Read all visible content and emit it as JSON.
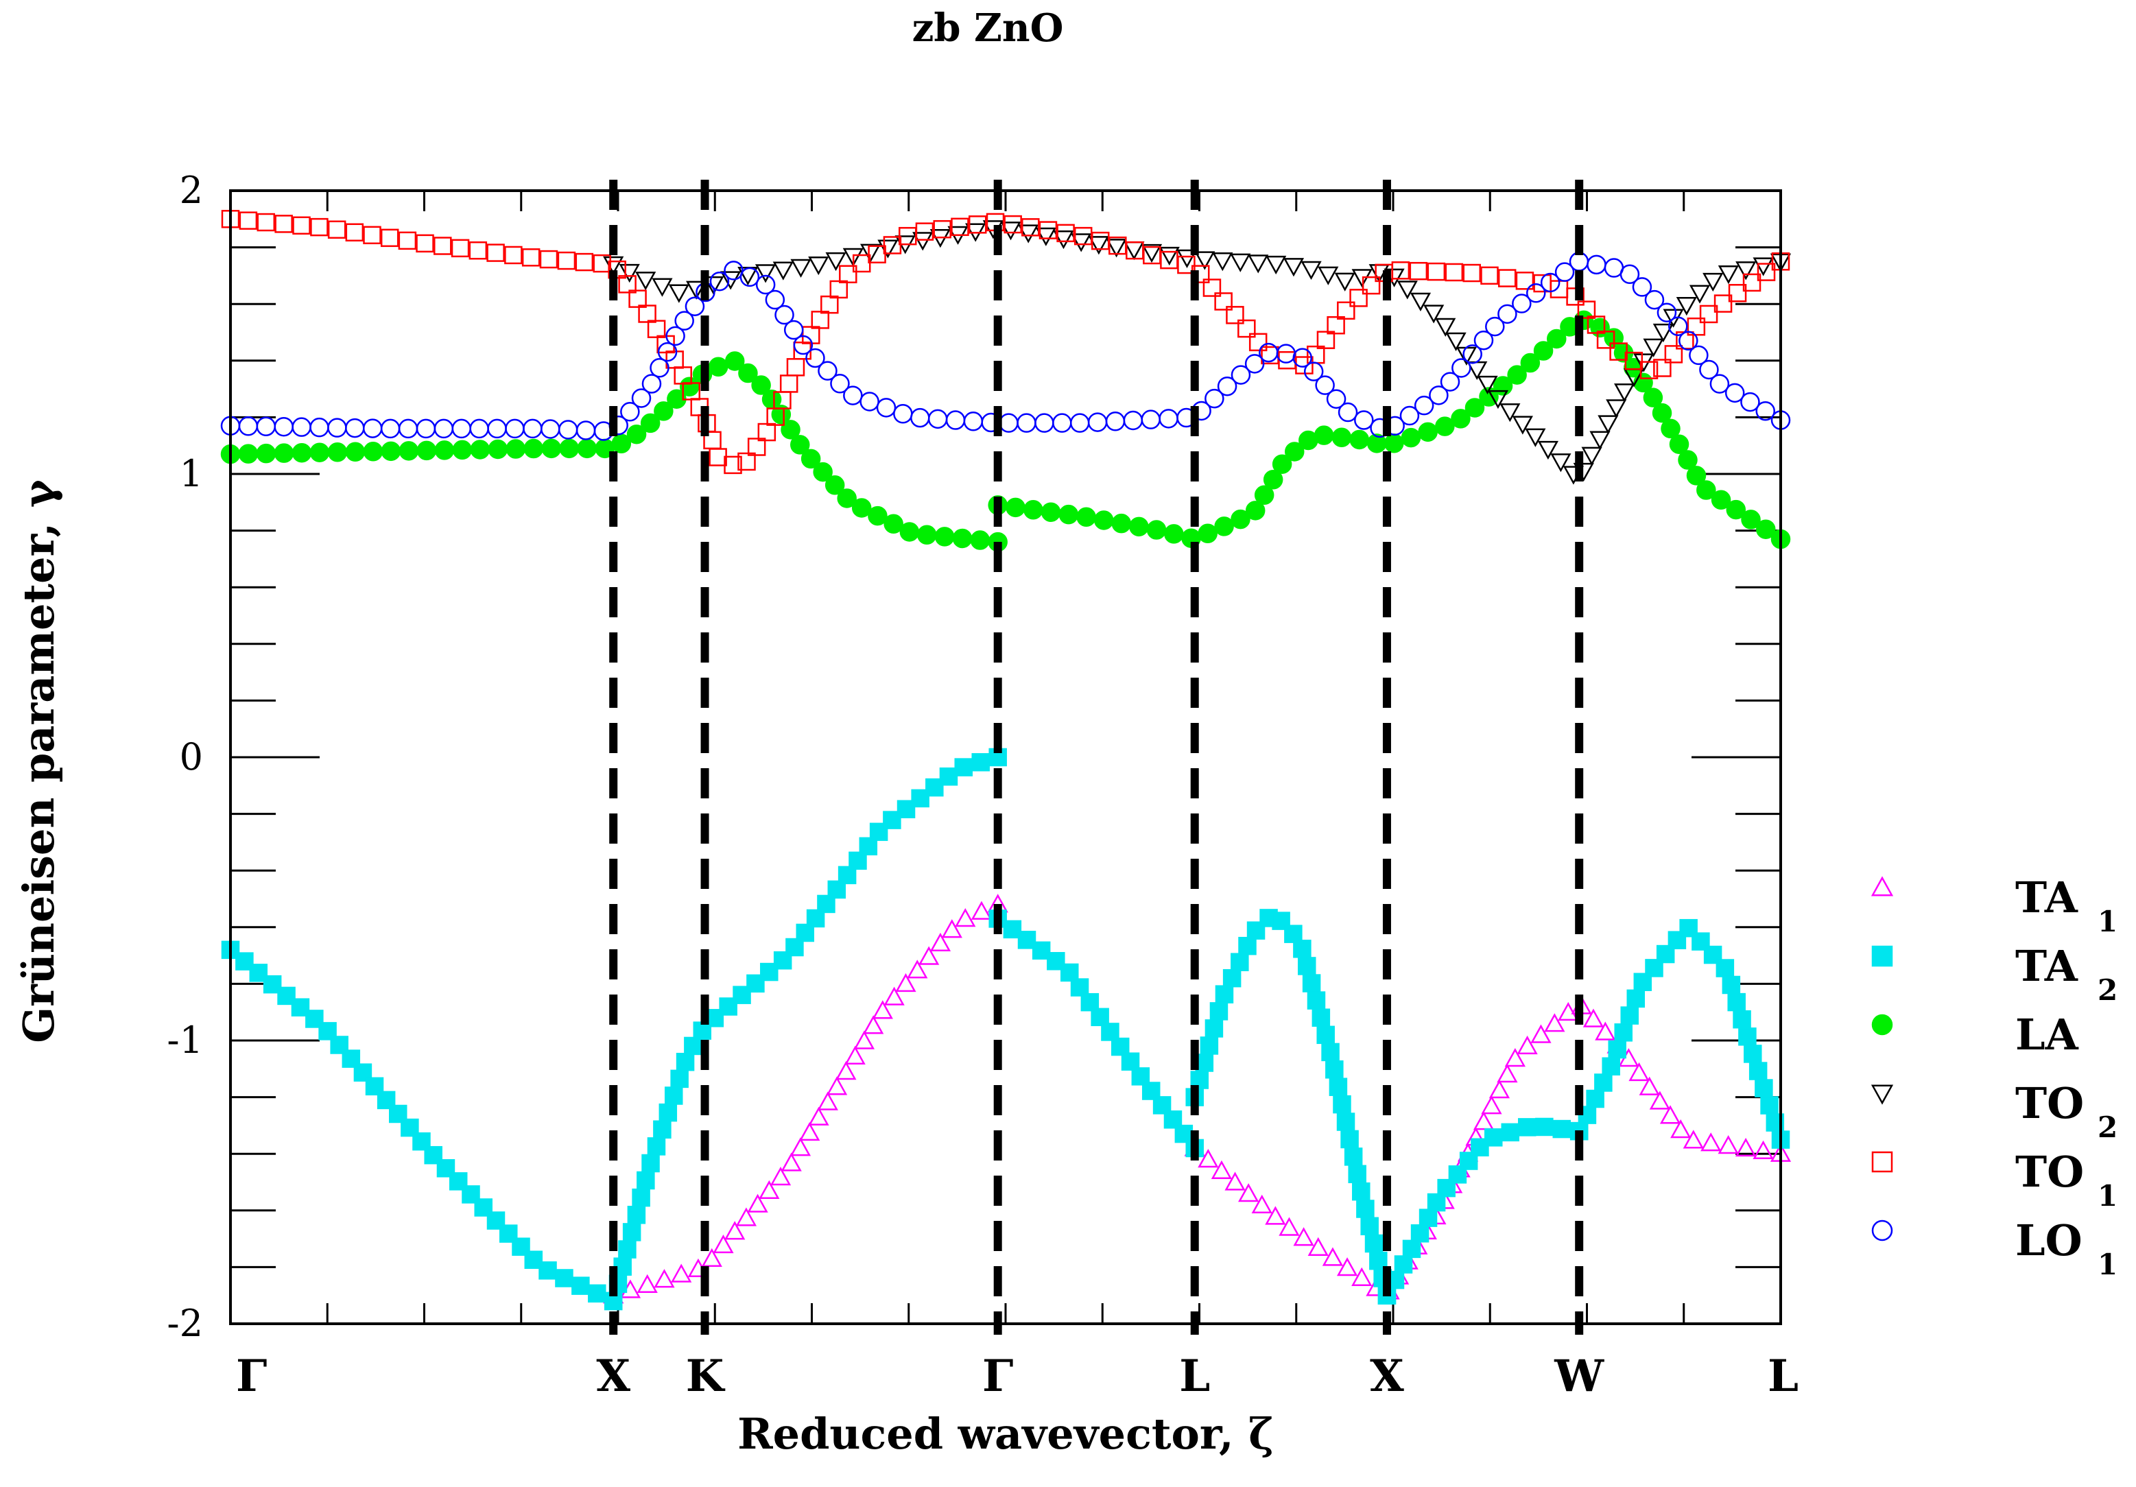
{
  "chart_data": {
    "type": "scatter",
    "title": "zb ZnO",
    "xlabel": "Reduced wavevector, ζ",
    "ylabel": "Grüneisen parameter, γ",
    "xlim": [
      0,
      1
    ],
    "ylim": [
      -2,
      2
    ],
    "yticks": [
      "2",
      "1",
      "0",
      "-1",
      "-2"
    ],
    "ytick_values": [
      2,
      1,
      0,
      -1,
      -2
    ],
    "high_symmetry_points": [
      {
        "label": "Γ",
        "x": 0.0,
        "line": false
      },
      {
        "label": "X",
        "x": 0.247,
        "line": true
      },
      {
        "label": "K",
        "x": 0.306,
        "line": true
      },
      {
        "label": "Γ",
        "x": 0.495,
        "line": true
      },
      {
        "label": "L",
        "x": 0.622,
        "line": true
      },
      {
        "label": "X",
        "x": 0.746,
        "line": true
      },
      {
        "label": "W",
        "x": 0.87,
        "line": true
      },
      {
        "label": "L",
        "x": 1.0,
        "line": false
      }
    ],
    "legend": [
      {
        "name": "TA",
        "sub": "1",
        "marker": "triangle-up",
        "color": "#ff00ff",
        "filled": false
      },
      {
        "name": "TA",
        "sub": "2",
        "marker": "square",
        "color": "#00e5ee",
        "filled": true
      },
      {
        "name": "LA",
        "sub": "",
        "marker": "circle",
        "color": "#00ee00",
        "filled": true
      },
      {
        "name": "TO",
        "sub": "2",
        "marker": "triangle-down",
        "color": "#000000",
        "filled": false
      },
      {
        "name": "TO",
        "sub": "1",
        "marker": "square",
        "color": "#ff0000",
        "filled": false
      },
      {
        "name": "LO",
        "sub": "1",
        "marker": "circle",
        "color": "#0000ff",
        "filled": false
      }
    ],
    "legend_position": "right",
    "series": [
      {
        "name": "TA1",
        "segments": [
          [
            [
              0.247,
              -1.9
            ],
            [
              0.306,
              -1.8
            ],
            [
              0.36,
              -1.45
            ],
            [
              0.42,
              -0.9
            ],
            [
              0.47,
              -0.58
            ],
            [
              0.495,
              -0.52
            ]
          ],
          [
            [
              0.622,
              -1.38
            ],
            [
              0.68,
              -1.65
            ],
            [
              0.746,
              -1.9
            ],
            [
              0.78,
              -1.6
            ],
            [
              0.83,
              -1.05
            ],
            [
              0.87,
              -0.87
            ],
            [
              0.9,
              -1.05
            ],
            [
              0.94,
              -1.35
            ],
            [
              1.0,
              -1.4
            ]
          ]
        ]
      },
      {
        "name": "TA2",
        "segments": [
          [
            [
              0.0,
              -0.68
            ],
            [
              0.06,
              -0.95
            ],
            [
              0.13,
              -1.4
            ],
            [
              0.2,
              -1.8
            ],
            [
              0.247,
              -1.92
            ]
          ],
          [
            [
              0.247,
              -1.92
            ],
            [
              0.27,
              -1.45
            ],
            [
              0.295,
              -1.05
            ],
            [
              0.306,
              -0.95
            ],
            [
              0.36,
              -0.7
            ],
            [
              0.42,
              -0.25
            ],
            [
              0.47,
              -0.04
            ],
            [
              0.495,
              0.0
            ]
          ],
          [
            [
              0.495,
              -0.57
            ],
            [
              0.54,
              -0.75
            ],
            [
              0.59,
              -1.15
            ],
            [
              0.622,
              -1.38
            ]
          ],
          [
            [
              0.622,
              -1.2
            ],
            [
              0.64,
              -0.85
            ],
            [
              0.66,
              -0.62
            ],
            [
              0.673,
              -0.55
            ],
            [
              0.69,
              -0.65
            ],
            [
              0.71,
              -1.05
            ],
            [
              0.73,
              -1.55
            ],
            [
              0.746,
              -1.9
            ]
          ],
          [
            [
              0.746,
              -1.9
            ],
            [
              0.78,
              -1.55
            ],
            [
              0.81,
              -1.35
            ],
            [
              0.84,
              -1.3
            ],
            [
              0.87,
              -1.32
            ]
          ],
          [
            [
              0.87,
              -1.32
            ],
            [
              0.89,
              -1.1
            ],
            [
              0.91,
              -0.8
            ],
            [
              0.94,
              -0.6
            ],
            [
              0.965,
              -0.75
            ],
            [
              0.985,
              -1.1
            ],
            [
              1.0,
              -1.35
            ]
          ]
        ]
      },
      {
        "name": "LA",
        "segments": [
          [
            [
              0.0,
              1.07
            ],
            [
              0.1,
              1.08
            ],
            [
              0.2,
              1.09
            ],
            [
              0.247,
              1.09
            ],
            [
              0.265,
              1.15
            ],
            [
              0.285,
              1.25
            ],
            [
              0.306,
              1.36
            ],
            [
              0.325,
              1.4
            ],
            [
              0.345,
              1.3
            ],
            [
              0.37,
              1.08
            ],
            [
              0.4,
              0.9
            ],
            [
              0.44,
              0.79
            ],
            [
              0.495,
              0.76
            ]
          ],
          [
            [
              0.495,
              0.89
            ],
            [
              0.55,
              0.85
            ],
            [
              0.6,
              0.8
            ],
            [
              0.622,
              0.77
            ],
            [
              0.66,
              0.86
            ],
            [
              0.68,
              1.05
            ],
            [
              0.7,
              1.14
            ],
            [
              0.73,
              1.12
            ],
            [
              0.746,
              1.1
            ],
            [
              0.79,
              1.18
            ],
            [
              0.83,
              1.35
            ],
            [
              0.87,
              1.55
            ],
            [
              0.89,
              1.5
            ],
            [
              0.92,
              1.25
            ],
            [
              0.95,
              0.95
            ],
            [
              1.0,
              0.77
            ]
          ]
        ]
      },
      {
        "name": "TO2",
        "segments": [
          [
            [
              0.247,
              1.74
            ],
            [
              0.27,
              1.68
            ],
            [
              0.29,
              1.64
            ],
            [
              0.306,
              1.66
            ],
            [
              0.33,
              1.7
            ],
            [
              0.38,
              1.74
            ],
            [
              0.44,
              1.82
            ],
            [
              0.495,
              1.87
            ],
            [
              0.55,
              1.82
            ],
            [
              0.622,
              1.76
            ],
            [
              0.68,
              1.74
            ],
            [
              0.7,
              1.72
            ],
            [
              0.72,
              1.68
            ],
            [
              0.746,
              1.72
            ],
            [
              0.78,
              1.55
            ],
            [
              0.82,
              1.25
            ],
            [
              0.87,
              0.98
            ],
            [
              0.9,
              1.3
            ],
            [
              0.93,
              1.55
            ],
            [
              0.96,
              1.7
            ],
            [
              1.0,
              1.75
            ]
          ]
        ]
      },
      {
        "name": "TO1",
        "segments": [
          [
            [
              0.0,
              1.9
            ],
            [
              0.06,
              1.87
            ],
            [
              0.13,
              1.81
            ],
            [
              0.2,
              1.76
            ],
            [
              0.247,
              1.74
            ],
            [
              0.265,
              1.6
            ],
            [
              0.285,
              1.42
            ],
            [
              0.306,
              1.2
            ],
            [
              0.315,
              1.05
            ],
            [
              0.33,
              1.02
            ],
            [
              0.35,
              1.18
            ],
            [
              0.37,
              1.45
            ],
            [
              0.4,
              1.72
            ],
            [
              0.44,
              1.85
            ],
            [
              0.495,
              1.89
            ],
            [
              0.55,
              1.84
            ],
            [
              0.622,
              1.73
            ],
            [
              0.645,
              1.58
            ],
            [
              0.67,
              1.42
            ],
            [
              0.695,
              1.38
            ],
            [
              0.72,
              1.58
            ],
            [
              0.746,
              1.72
            ],
            [
              0.8,
              1.71
            ],
            [
              0.85,
              1.67
            ],
            [
              0.87,
              1.62
            ],
            [
              0.89,
              1.45
            ],
            [
              0.92,
              1.35
            ],
            [
              0.95,
              1.55
            ],
            [
              1.0,
              1.75
            ]
          ]
        ]
      },
      {
        "name": "LO1",
        "segments": [
          [
            [
              0.0,
              1.17
            ],
            [
              0.1,
              1.16
            ],
            [
              0.2,
              1.16
            ],
            [
              0.247,
              1.15
            ],
            [
              0.27,
              1.3
            ],
            [
              0.29,
              1.52
            ],
            [
              0.306,
              1.64
            ],
            [
              0.325,
              1.72
            ],
            [
              0.345,
              1.67
            ],
            [
              0.37,
              1.45
            ],
            [
              0.4,
              1.28
            ],
            [
              0.44,
              1.2
            ],
            [
              0.495,
              1.18
            ],
            [
              0.55,
              1.18
            ],
            [
              0.622,
              1.2
            ],
            [
              0.645,
              1.32
            ],
            [
              0.67,
              1.43
            ],
            [
              0.69,
              1.42
            ],
            [
              0.72,
              1.22
            ],
            [
              0.746,
              1.15
            ],
            [
              0.78,
              1.28
            ],
            [
              0.82,
              1.55
            ],
            [
              0.87,
              1.75
            ],
            [
              0.9,
              1.72
            ],
            [
              0.93,
              1.55
            ],
            [
              0.96,
              1.32
            ],
            [
              1.0,
              1.19
            ]
          ]
        ]
      }
    ]
  }
}
